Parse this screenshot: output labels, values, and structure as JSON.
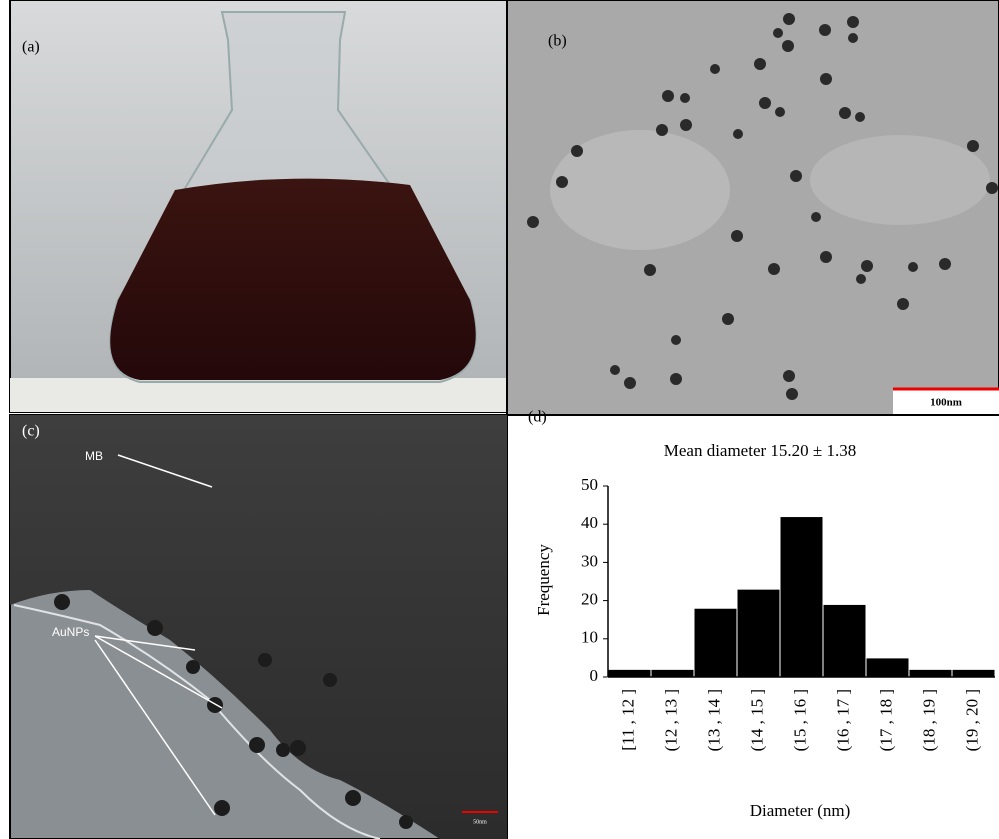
{
  "panels": [
    {
      "label": "(a)"
    },
    {
      "label": "(b)",
      "scale_bar": "100nm"
    },
    {
      "label": "(c)",
      "annotations": [
        "MB",
        "AuNPs"
      ],
      "scale_bar": "50nm"
    },
    {
      "label": "(d)"
    }
  ],
  "chart_data": {
    "type": "bar",
    "title": "Mean diameter 15.20 ± 1.38",
    "x_label": "Diameter (nm)",
    "y_label": "Frequency",
    "categories": [
      "[11 , 12 ]",
      "(12 , 13 ]",
      "(13 , 14 ]",
      "(14 , 15 ]",
      "(15 , 16 ]",
      "(16 , 17 ]",
      "(17 , 18 ]",
      "(18 , 19 ]",
      "(19 , 20 ]"
    ],
    "values": [
      2,
      2,
      18,
      23,
      42,
      19,
      5,
      2,
      2
    ],
    "color": "#000000",
    "ylim": [
      0,
      50
    ],
    "yticks": [
      0,
      10,
      20,
      30,
      40,
      50
    ],
    "grid": false
  }
}
